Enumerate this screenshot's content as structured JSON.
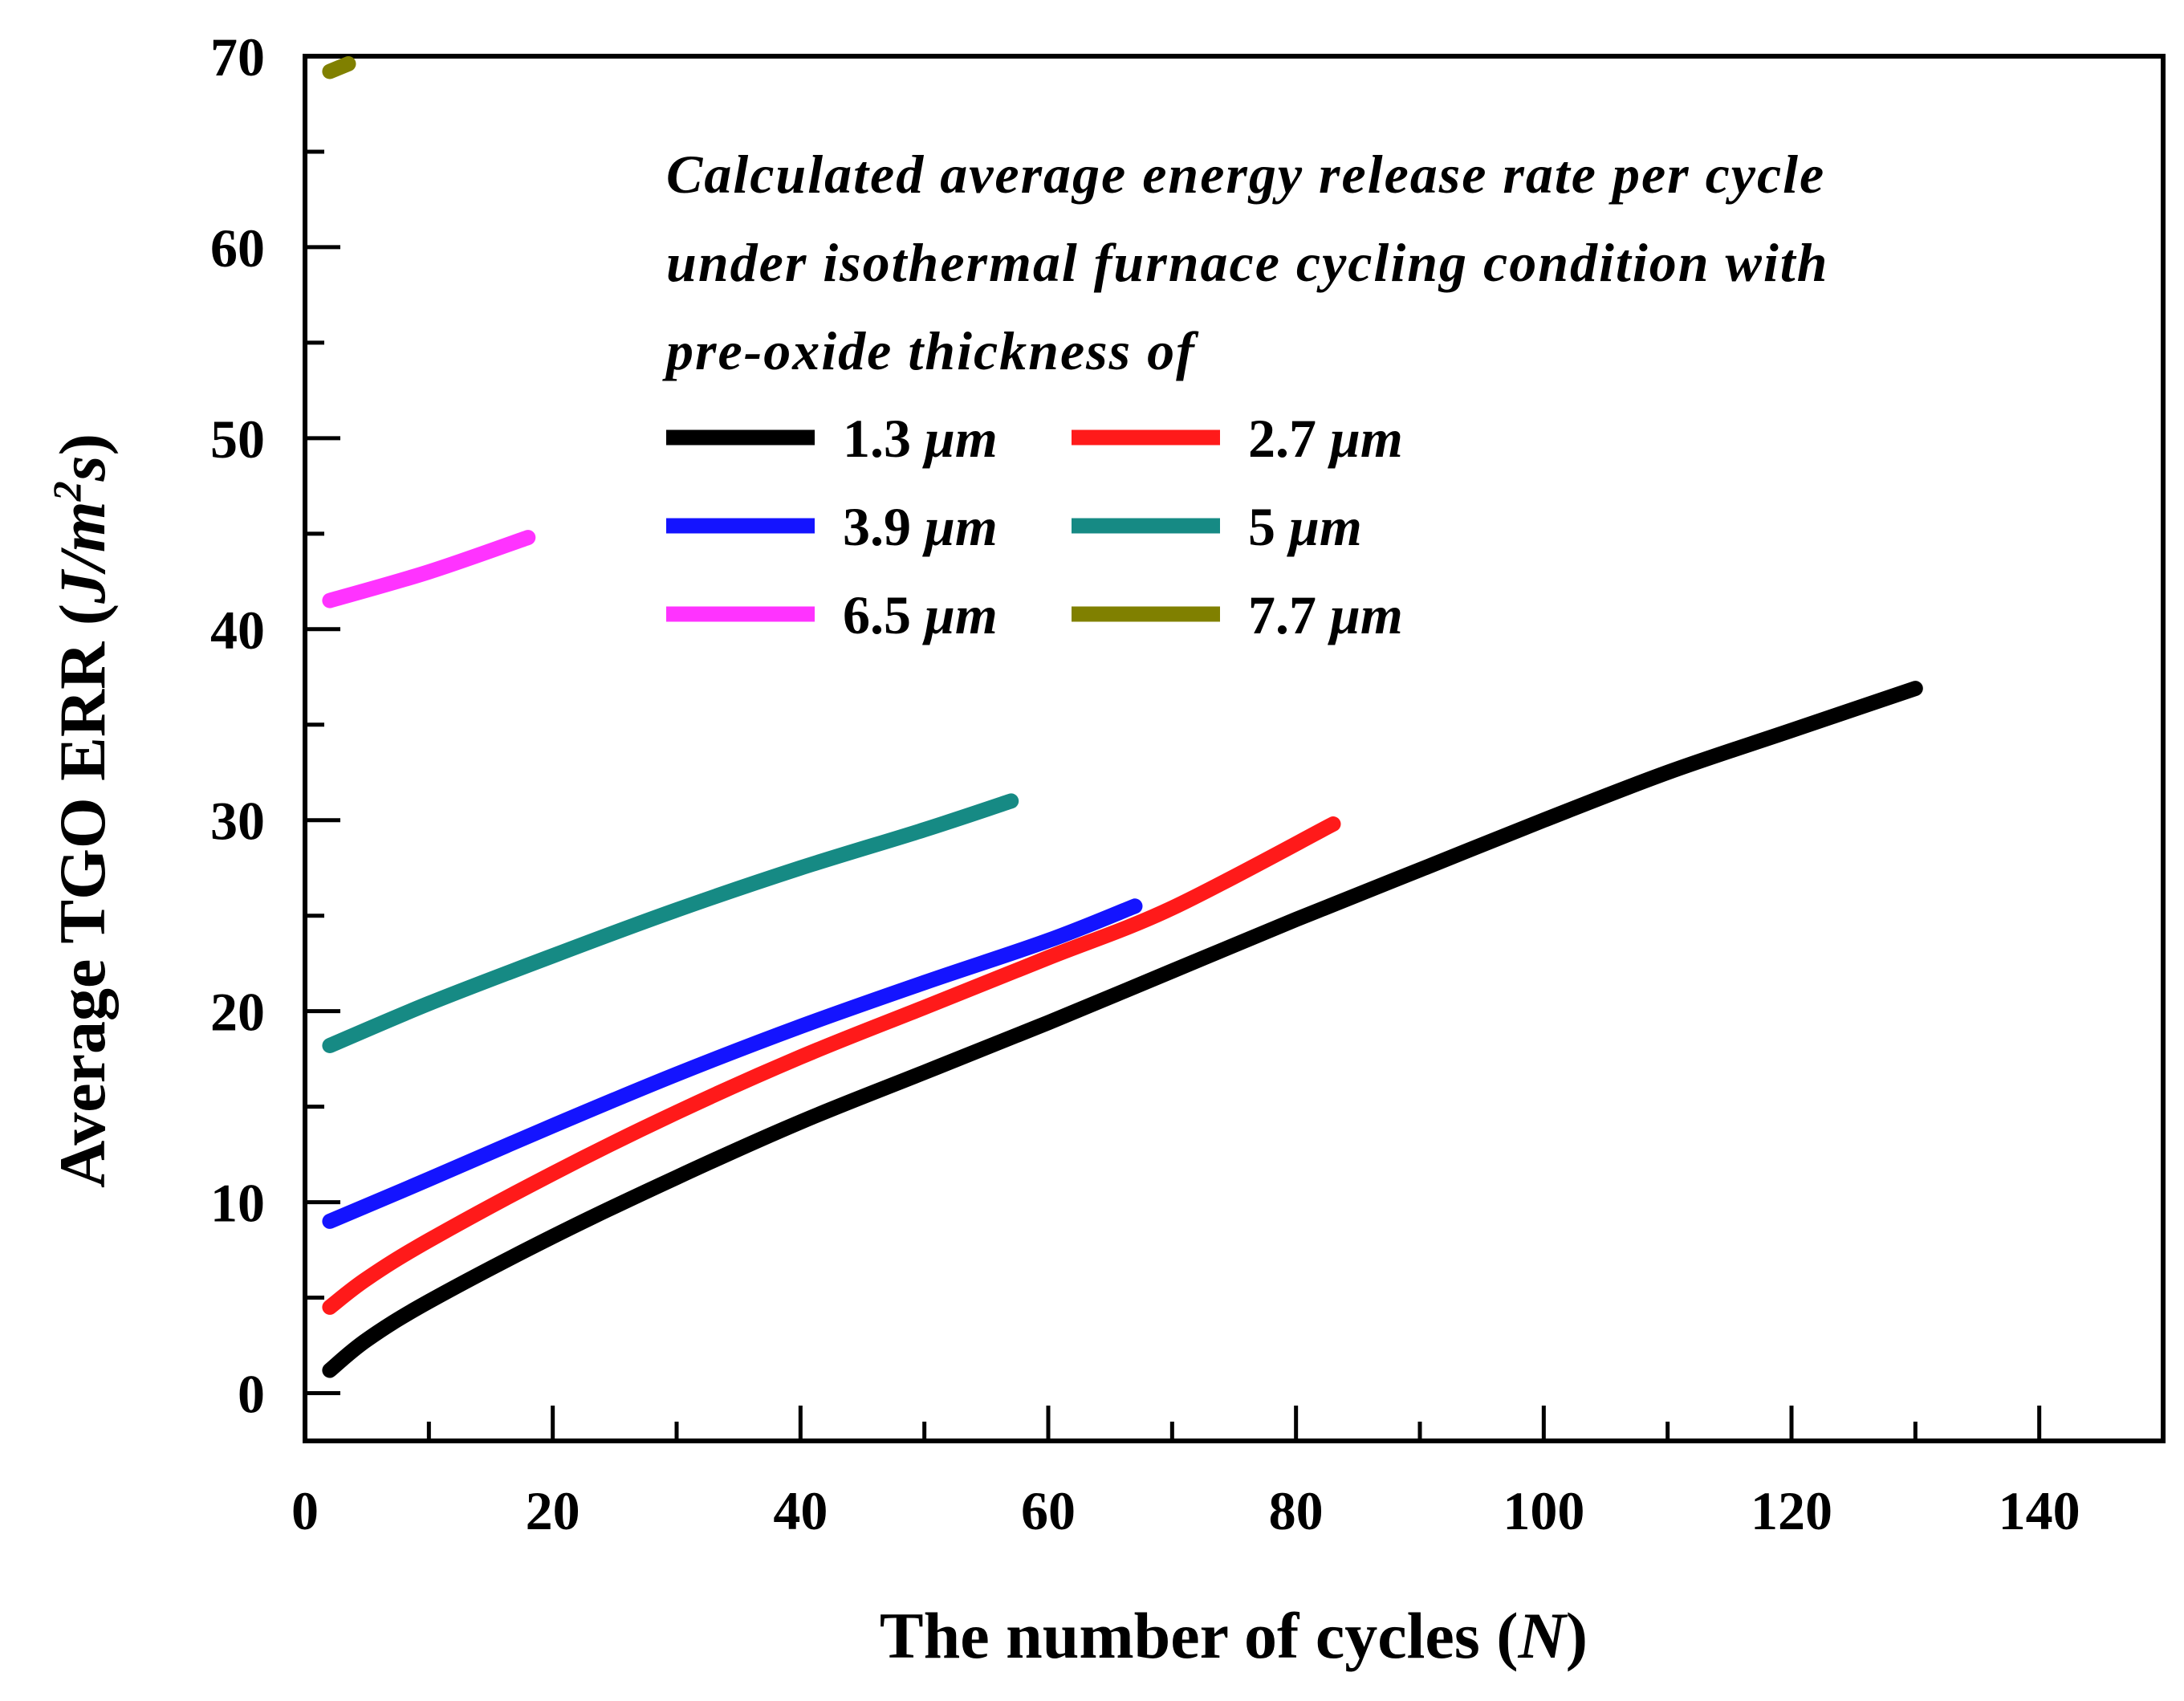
{
  "chart_data": {
    "type": "line",
    "title": "",
    "xlabel": "The number of cycles",
    "xlabel_symbol": "N",
    "ylabel": "Average TGO ERR",
    "ylabel_unit": "J/m2s",
    "xlim": [
      0,
      150
    ],
    "ylim": [
      -2.5,
      70
    ],
    "x_ticks": [
      0,
      20,
      40,
      60,
      80,
      100,
      120,
      140
    ],
    "y_ticks": [
      0,
      10,
      20,
      30,
      40,
      50,
      60,
      70
    ],
    "grid": false,
    "legend_placement": "top-right",
    "legend_title_lines": [
      "Calculated average energy release rate per cycle",
      "under isothermal furnace cycling condition with",
      "pre-oxide thickness of"
    ],
    "series": [
      {
        "name": "1.3",
        "unit": "μm",
        "color": "#000000",
        "x": [
          2,
          5,
          10,
          20,
          30,
          40,
          50,
          60,
          70,
          80,
          90,
          100,
          110,
          120,
          130
        ],
        "values": [
          1.2,
          2.8,
          4.8,
          8.2,
          11.3,
          14.2,
          16.8,
          19.4,
          22.1,
          24.8,
          27.4,
          30.0,
          32.5,
          34.7,
          36.9
        ]
      },
      {
        "name": "2.7",
        "unit": "μm",
        "color": "#ff1a1a",
        "x": [
          2,
          5,
          10,
          20,
          30,
          40,
          50,
          60,
          70,
          83
        ],
        "values": [
          4.5,
          6.0,
          8.0,
          11.5,
          14.7,
          17.6,
          20.2,
          22.8,
          25.4,
          29.8
        ]
      },
      {
        "name": "3.9",
        "unit": "μm",
        "color": "#1414ff",
        "x": [
          2,
          10,
          20,
          30,
          40,
          50,
          60,
          67
        ],
        "values": [
          9.0,
          11.2,
          14.0,
          16.7,
          19.2,
          21.5,
          23.7,
          25.5
        ]
      },
      {
        "name": "5",
        "unit": "μm",
        "color": "#168a84",
        "x": [
          2,
          10,
          20,
          30,
          40,
          50,
          57
        ],
        "values": [
          18.2,
          20.4,
          22.9,
          25.3,
          27.5,
          29.5,
          31.0
        ]
      },
      {
        "name": "6.5",
        "unit": "μm",
        "color": "#ff33ff",
        "x": [
          2,
          10,
          18
        ],
        "values": [
          41.5,
          43.0,
          44.8
        ]
      },
      {
        "name": "7.7",
        "unit": "μm",
        "color": "#808000",
        "x": [
          2,
          3.5
        ],
        "values": [
          69.2,
          69.6
        ]
      }
    ]
  }
}
